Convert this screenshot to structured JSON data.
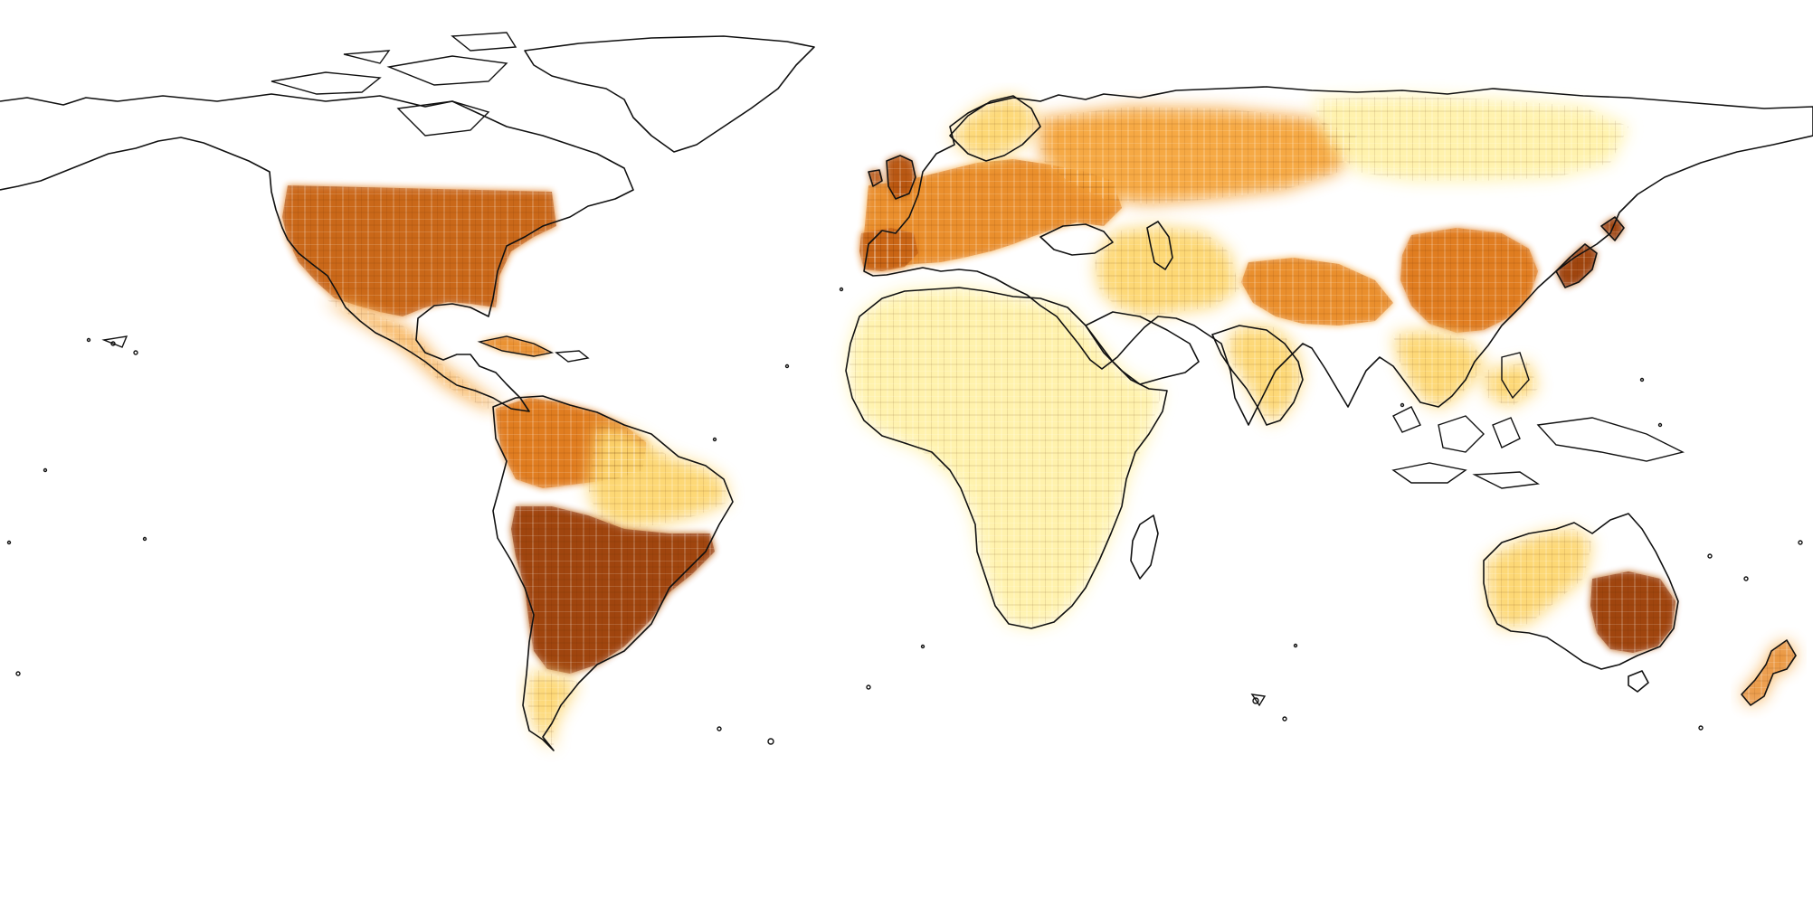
{
  "map": {
    "projection": "equirectangular",
    "background_color": "#ffffff",
    "coastline_color": "#111111",
    "colormap": {
      "name": "YlOrBr",
      "stops": [
        "#fffbe0",
        "#fff2a8",
        "#fdd66e",
        "#f6a53b",
        "#e07a1c",
        "#b8540f",
        "#8a3205"
      ]
    },
    "regions": [
      {
        "name": "contiguous-usa",
        "intensity": 0.72
      },
      {
        "name": "mexico-central-america",
        "intensity": 0.45
      },
      {
        "name": "caribbean",
        "intensity": 0.55
      },
      {
        "name": "northern-south-america",
        "intensity": 0.6
      },
      {
        "name": "brazil-interior",
        "intensity": 0.35
      },
      {
        "name": "southern-brazil-argentina",
        "intensity": 0.85
      },
      {
        "name": "patagonia",
        "intensity": 0.4
      },
      {
        "name": "europe",
        "intensity": 0.55
      },
      {
        "name": "british-isles",
        "intensity": 0.75
      },
      {
        "name": "iberia",
        "intensity": 0.7
      },
      {
        "name": "scandinavia",
        "intensity": 0.3
      },
      {
        "name": "eastern-europe-russia",
        "intensity": 0.45
      },
      {
        "name": "siberia",
        "intensity": 0.2
      },
      {
        "name": "middle-east",
        "intensity": 0.25
      },
      {
        "name": "northern-india",
        "intensity": 0.55
      },
      {
        "name": "india-south",
        "intensity": 0.4
      },
      {
        "name": "eastern-china",
        "intensity": 0.6
      },
      {
        "name": "japan",
        "intensity": 0.8
      },
      {
        "name": "southeast-asia",
        "intensity": 0.3
      },
      {
        "name": "africa",
        "intensity": 0.12
      },
      {
        "name": "southwest-australia",
        "intensity": 0.35
      },
      {
        "name": "southeast-australia",
        "intensity": 0.9
      },
      {
        "name": "new-zealand",
        "intensity": 0.5
      }
    ]
  }
}
